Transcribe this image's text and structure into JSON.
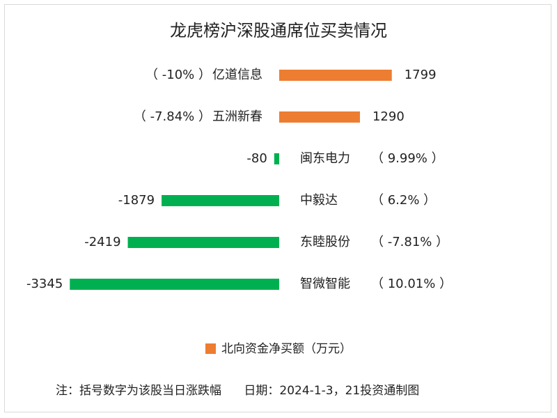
{
  "chart_data": {
    "type": "bar",
    "orientation": "horizontal",
    "title": "龙虎榜沪深股通席位买卖情况",
    "categories": [
      "亿道信息",
      "五洲新春",
      "闽东电力",
      "中毅达",
      "东睦股份",
      "智微智能"
    ],
    "values": [
      1799,
      1290,
      -80,
      -1879,
      -2419,
      -3345
    ],
    "value_labels": [
      "1799",
      "1290",
      "-80",
      "-1879",
      "-2419",
      "-3345"
    ],
    "change_labels": [
      "（ -10% ）",
      "（ -7.84% ）",
      "（ 9.99% ）",
      "（ 6.2% ）",
      "（ -7.81% ）",
      "（ 10.01% ）"
    ],
    "series": [
      {
        "name": "北向资金净买额（万元）",
        "values": [
          1799,
          1290,
          -80,
          -1879,
          -2419,
          -3345
        ]
      }
    ],
    "colors": {
      "positive": "#ed7d31",
      "negative": "#00b050"
    },
    "legend_position": "bottom",
    "grid": false
  },
  "legend": {
    "label": "北向资金净买额（万元）"
  },
  "note": "注：括号数字为该股当日涨跌幅      日期：2024-1-3，21投资通制图"
}
